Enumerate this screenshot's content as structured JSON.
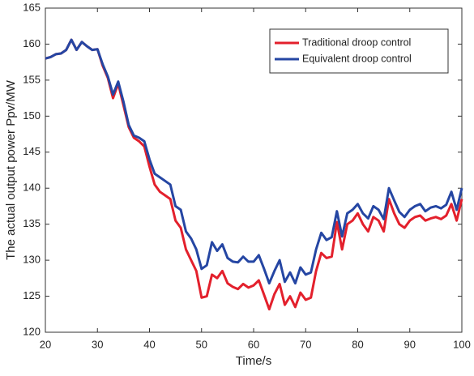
{
  "chart_data": {
    "type": "line",
    "xlabel": "Time/s",
    "ylabel": "The actual output power  Ppv/MW",
    "x": [
      20,
      21,
      22,
      23,
      24,
      25,
      26,
      27,
      28,
      29,
      30,
      31,
      32,
      33,
      34,
      35,
      36,
      37,
      38,
      39,
      40,
      41,
      42,
      43,
      44,
      45,
      46,
      47,
      48,
      49,
      50,
      51,
      52,
      53,
      54,
      55,
      56,
      57,
      58,
      59,
      60,
      61,
      62,
      63,
      64,
      65,
      66,
      67,
      68,
      69,
      70,
      71,
      72,
      73,
      74,
      75,
      76,
      77,
      78,
      79,
      80,
      81,
      82,
      83,
      84,
      85,
      86,
      87,
      88,
      89,
      90,
      91,
      92,
      93,
      94,
      95,
      96,
      97,
      98,
      99,
      100
    ],
    "series": [
      {
        "name": "Traditional droop control",
        "color": "#e3202c",
        "values": [
          158,
          158.2,
          158.6,
          158.7,
          159.2,
          160.6,
          159.2,
          160.3,
          159.7,
          159.2,
          159.3,
          157,
          155.3,
          152.5,
          154.5,
          151.5,
          148.5,
          147,
          146.5,
          145.8,
          143,
          140.5,
          139.5,
          139,
          138.5,
          135.5,
          134.5,
          131.5,
          130,
          128.5,
          124.8,
          125,
          128,
          127.5,
          128.5,
          126.8,
          126.3,
          126,
          126.7,
          126.2,
          126.5,
          127.2,
          125.2,
          123.2,
          125.3,
          126.7,
          123.8,
          125,
          123.5,
          125.5,
          124.5,
          124.8,
          128.5,
          131,
          130.3,
          130.5,
          135.3,
          131.5,
          135,
          135.5,
          136.5,
          135,
          134,
          136,
          135.5,
          134,
          138.5,
          136.5,
          135,
          134.5,
          135.5,
          136,
          136.2,
          135.5,
          135.8,
          136,
          135.7,
          136.2,
          137.8,
          135.5,
          138.5
        ]
      },
      {
        "name": "Equivalent droop control",
        "color": "#2546a3",
        "values": [
          158,
          158.2,
          158.6,
          158.7,
          159.2,
          160.6,
          159.2,
          160.3,
          159.7,
          159.2,
          159.3,
          157.2,
          155.5,
          153,
          154.8,
          152,
          148.8,
          147.3,
          147,
          146.5,
          144,
          142,
          141.5,
          141,
          140.5,
          137.5,
          137,
          134,
          133,
          131.5,
          128.8,
          129.3,
          132.5,
          131.3,
          132.2,
          130.3,
          129.8,
          129.7,
          130.5,
          129.8,
          129.8,
          130.7,
          128.8,
          126.8,
          128.5,
          130,
          127,
          128.3,
          126.8,
          129,
          128,
          128.3,
          131.5,
          133.8,
          132.8,
          133.2,
          136.8,
          133.3,
          136.5,
          137,
          137.8,
          136.5,
          135.8,
          137.5,
          137,
          135.7,
          140,
          138.3,
          136.7,
          136,
          137,
          137.5,
          137.8,
          136.8,
          137.3,
          137.5,
          137.2,
          137.7,
          139.5,
          137,
          140
        ]
      }
    ],
    "xlim": [
      20,
      100
    ],
    "xticks": [
      20,
      30,
      40,
      50,
      60,
      70,
      80,
      90,
      100
    ],
    "ylim": [
      120,
      165
    ],
    "yticks": [
      120,
      125,
      130,
      135,
      140,
      145,
      150,
      155,
      160,
      165
    ],
    "grid": false,
    "legend": "upper right"
  }
}
